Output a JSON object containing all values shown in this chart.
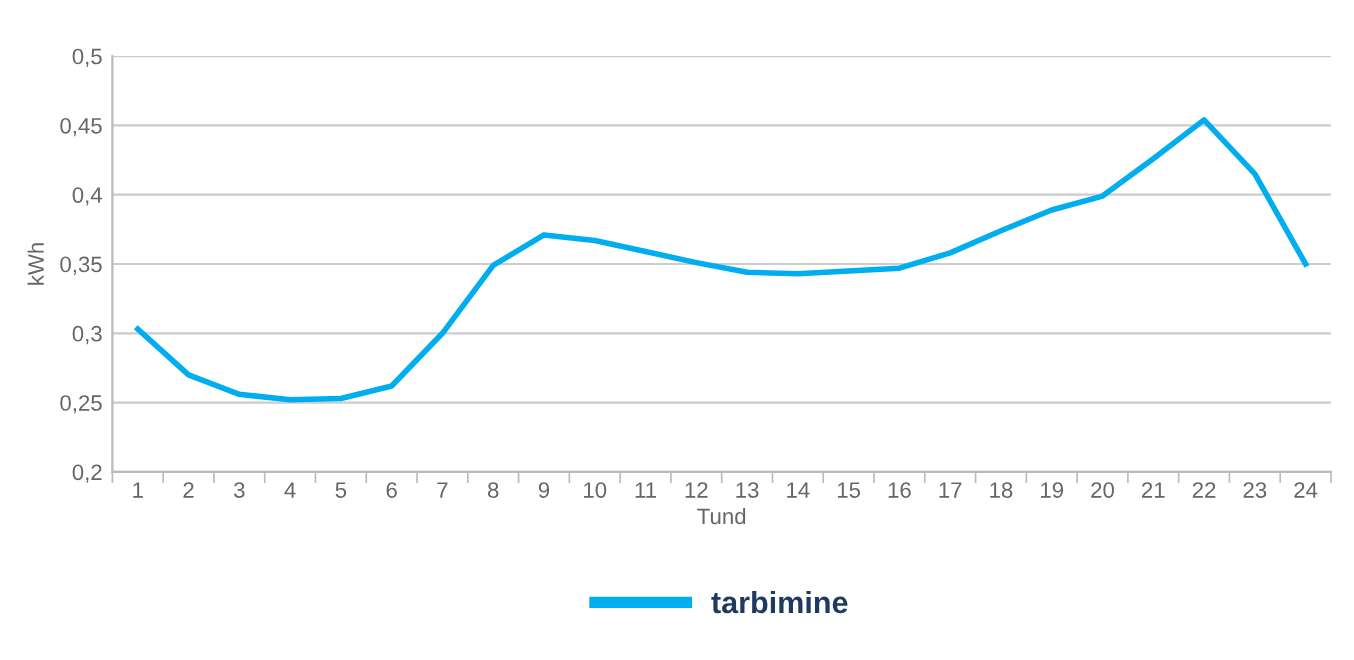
{
  "chart_data": {
    "type": "line",
    "xlabel": "Tund",
    "ylabel": "kWh",
    "categories": [
      "1",
      "2",
      "3",
      "4",
      "5",
      "6",
      "7",
      "8",
      "9",
      "10",
      "11",
      "12",
      "13",
      "14",
      "15",
      "16",
      "17",
      "18",
      "19",
      "20",
      "21",
      "22",
      "23",
      "24"
    ],
    "series": [
      {
        "name": "tarbimine",
        "color": "#00aeef",
        "values": [
          0.303,
          0.27,
          0.256,
          0.252,
          0.253,
          0.262,
          0.3,
          0.349,
          0.371,
          0.367,
          0.359,
          0.351,
          0.344,
          0.343,
          0.345,
          0.347,
          0.358,
          0.374,
          0.389,
          0.399,
          0.426,
          0.454,
          0.415,
          0.35
        ]
      }
    ],
    "ylim": [
      0.2,
      0.5
    ],
    "yticks": [
      {
        "value": 0.2,
        "label": "0,2"
      },
      {
        "value": 0.25,
        "label": "0,25"
      },
      {
        "value": 0.3,
        "label": "0,3"
      },
      {
        "value": 0.35,
        "label": "0,35"
      },
      {
        "value": 0.4,
        "label": "0,4"
      },
      {
        "value": 0.45,
        "label": "0,45"
      },
      {
        "value": 0.5,
        "label": "0,5"
      }
    ],
    "grid": "y",
    "legend": "bottom",
    "marker": "none",
    "line_style": "solid"
  }
}
